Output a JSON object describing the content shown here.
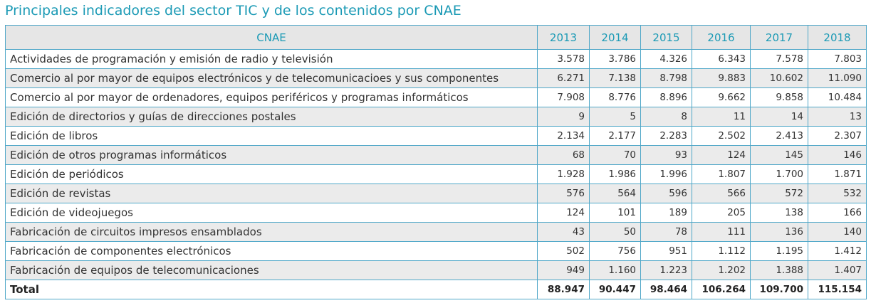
{
  "title": "Principales indicadores del sector TIC y de los contenidos por CNAE",
  "table": {
    "header": [
      "CNAE",
      "2013",
      "2014",
      "2015",
      "2016",
      "2017",
      "2018"
    ],
    "rows": [
      [
        "Actividades de programación y emisión de radio y televisión",
        "3.578",
        "3.786",
        "4.326",
        "6.343",
        "7.578",
        "7.803"
      ],
      [
        "Comercio al por mayor de equipos electrónicos y de telecomunicacioes y sus componentes",
        "6.271",
        "7.138",
        "8.798",
        "9.883",
        "10.602",
        "11.090"
      ],
      [
        "Comercio al por mayor de ordenadores, equipos periféricos y programas informáticos",
        "7.908",
        "8.776",
        "8.896",
        "9.662",
        "9.858",
        "10.484"
      ],
      [
        "Edición de directorios y guías de direcciones postales",
        "9",
        "5",
        "8",
        "11",
        "14",
        "13"
      ],
      [
        "Edición de libros",
        "2.134",
        "2.177",
        "2.283",
        "2.502",
        "2.413",
        "2.307"
      ],
      [
        "Edición de otros programas informáticos",
        "68",
        "70",
        "93",
        "124",
        "145",
        "146"
      ],
      [
        "Edición de periódicos",
        "1.928",
        "1.986",
        "1.996",
        "1.807",
        "1.700",
        "1.871"
      ],
      [
        "Edición de revistas",
        "576",
        "564",
        "596",
        "566",
        "572",
        "532"
      ],
      [
        "Edición de videojuegos",
        "124",
        "101",
        "189",
        "205",
        "138",
        "166"
      ],
      [
        "Fabricación de circuitos impresos ensamblados",
        "43",
        "50",
        "78",
        "111",
        "136",
        "140"
      ],
      [
        "Fabricación de componentes electrónicos",
        "502",
        "756",
        "951",
        "1.112",
        "1.195",
        "1.412"
      ],
      [
        "Fabricación de equipos de telecomunicaciones",
        "949",
        "1.160",
        "1.223",
        "1.202",
        "1.388",
        "1.407"
      ]
    ],
    "total": [
      "Total",
      "88.947",
      "90.447",
      "98.464",
      "106.264",
      "109.700",
      "115.154"
    ]
  }
}
